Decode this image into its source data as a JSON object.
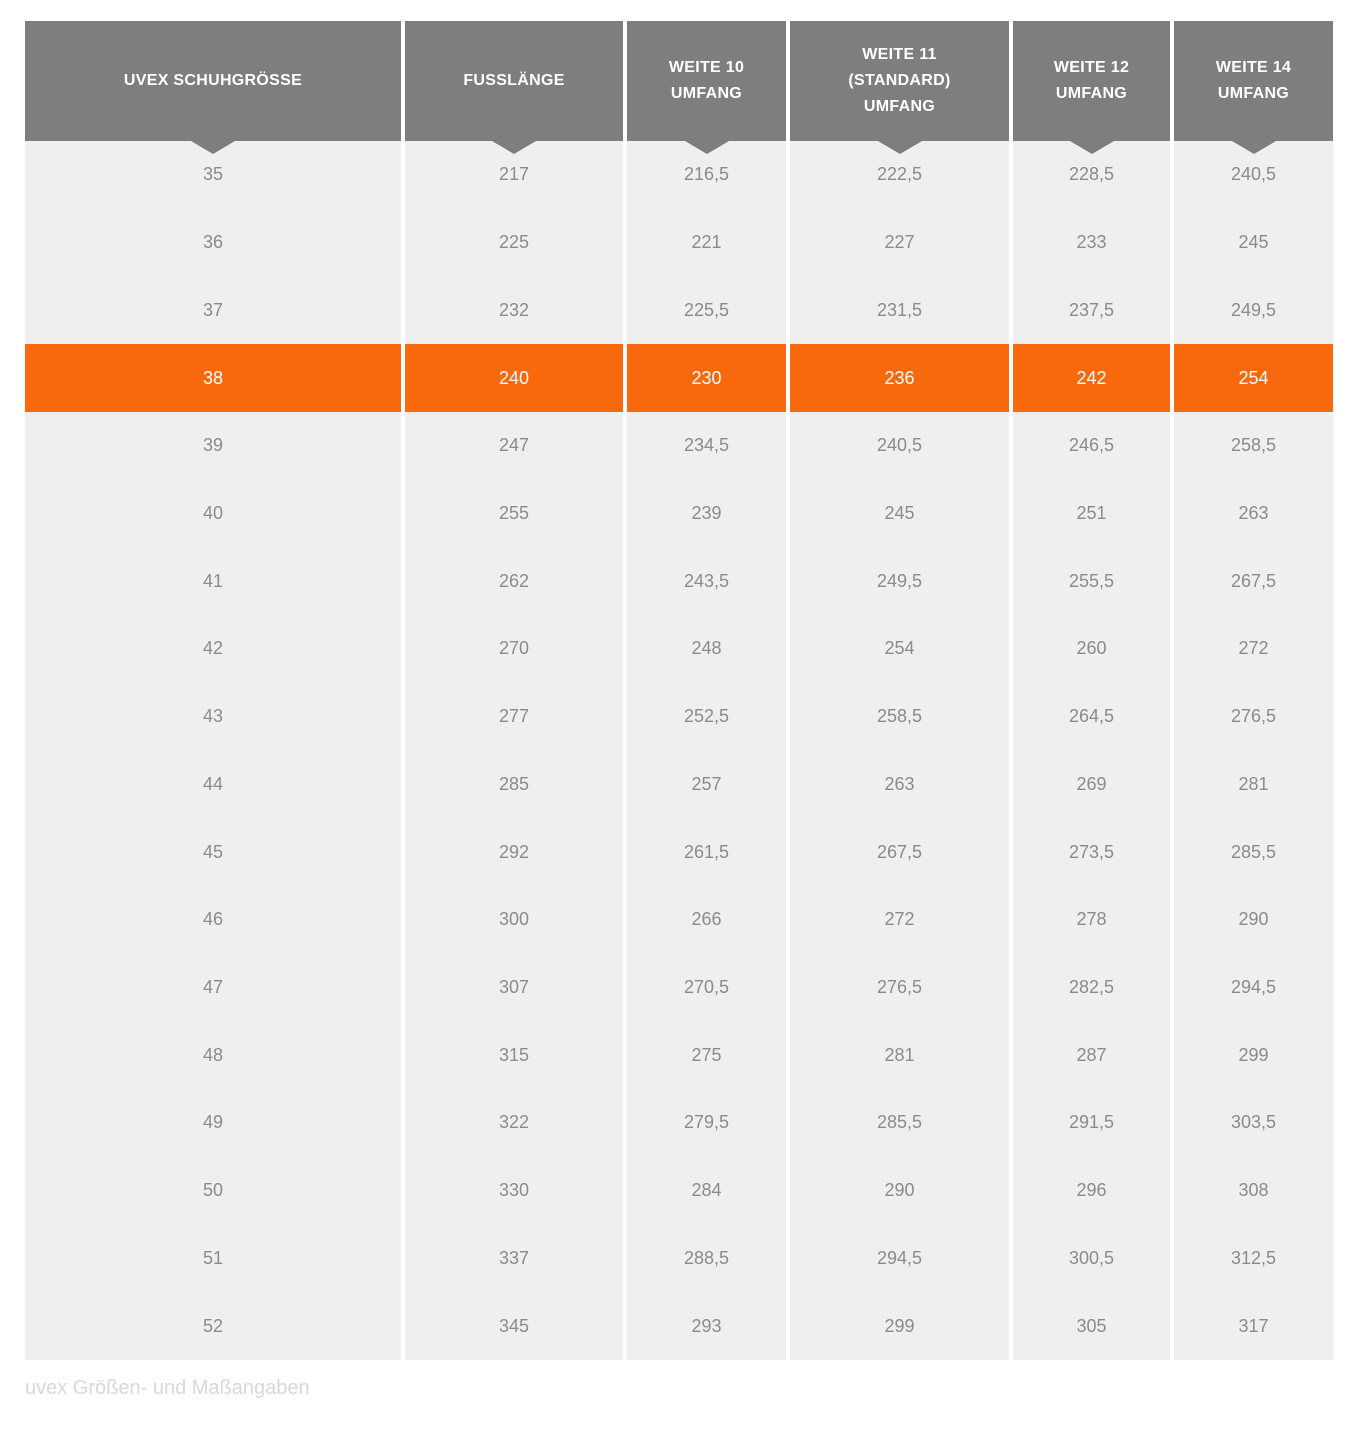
{
  "colors": {
    "header_bg": "#7e7e7e",
    "header_text": "#ffffff",
    "row_bg": "#efefef",
    "row_text": "#8b8b8b",
    "highlight_bg": "#f8690e",
    "highlight_text": "#ffffff",
    "caption_text": "#d8d8d8"
  },
  "table": {
    "columns": [
      {
        "label": "UVEX SCHUHGRÖSSE"
      },
      {
        "label": "FUSSLÄNGE"
      },
      {
        "label": "WEITE 10\nUMFANG"
      },
      {
        "label": "WEITE 11\n(STANDARD)\nUMFANG"
      },
      {
        "label": "WEITE 12\nUMFANG"
      },
      {
        "label": "WEITE 14\nUMFANG"
      }
    ],
    "rows": [
      {
        "highlighted": false,
        "values": [
          "35",
          "217",
          "216,5",
          "222,5",
          "228,5",
          "240,5"
        ]
      },
      {
        "highlighted": false,
        "values": [
          "36",
          "225",
          "221",
          "227",
          "233",
          "245"
        ]
      },
      {
        "highlighted": false,
        "values": [
          "37",
          "232",
          "225,5",
          "231,5",
          "237,5",
          "249,5"
        ]
      },
      {
        "highlighted": true,
        "values": [
          "38",
          "240",
          "230",
          "236",
          "242",
          "254"
        ]
      },
      {
        "highlighted": false,
        "values": [
          "39",
          "247",
          "234,5",
          "240,5",
          "246,5",
          "258,5"
        ]
      },
      {
        "highlighted": false,
        "values": [
          "40",
          "255",
          "239",
          "245",
          "251",
          "263"
        ]
      },
      {
        "highlighted": false,
        "values": [
          "41",
          "262",
          "243,5",
          "249,5",
          "255,5",
          "267,5"
        ]
      },
      {
        "highlighted": false,
        "values": [
          "42",
          "270",
          "248",
          "254",
          "260",
          "272"
        ]
      },
      {
        "highlighted": false,
        "values": [
          "43",
          "277",
          "252,5",
          "258,5",
          "264,5",
          "276,5"
        ]
      },
      {
        "highlighted": false,
        "values": [
          "44",
          "285",
          "257",
          "263",
          "269",
          "281"
        ]
      },
      {
        "highlighted": false,
        "values": [
          "45",
          "292",
          "261,5",
          "267,5",
          "273,5",
          "285,5"
        ]
      },
      {
        "highlighted": false,
        "values": [
          "46",
          "300",
          "266",
          "272",
          "278",
          "290"
        ]
      },
      {
        "highlighted": false,
        "values": [
          "47",
          "307",
          "270,5",
          "276,5",
          "282,5",
          "294,5"
        ]
      },
      {
        "highlighted": false,
        "values": [
          "48",
          "315",
          "275",
          "281",
          "287",
          "299"
        ]
      },
      {
        "highlighted": false,
        "values": [
          "49",
          "322",
          "279,5",
          "285,5",
          "291,5",
          "303,5"
        ]
      },
      {
        "highlighted": false,
        "values": [
          "50",
          "330",
          "284",
          "290",
          "296",
          "308"
        ]
      },
      {
        "highlighted": false,
        "values": [
          "51",
          "337",
          "288,5",
          "294,5",
          "300,5",
          "312,5"
        ]
      },
      {
        "highlighted": false,
        "values": [
          "52",
          "345",
          "293",
          "299",
          "305",
          "317"
        ]
      }
    ]
  },
  "caption": "uvex Größen- und Maßangaben"
}
